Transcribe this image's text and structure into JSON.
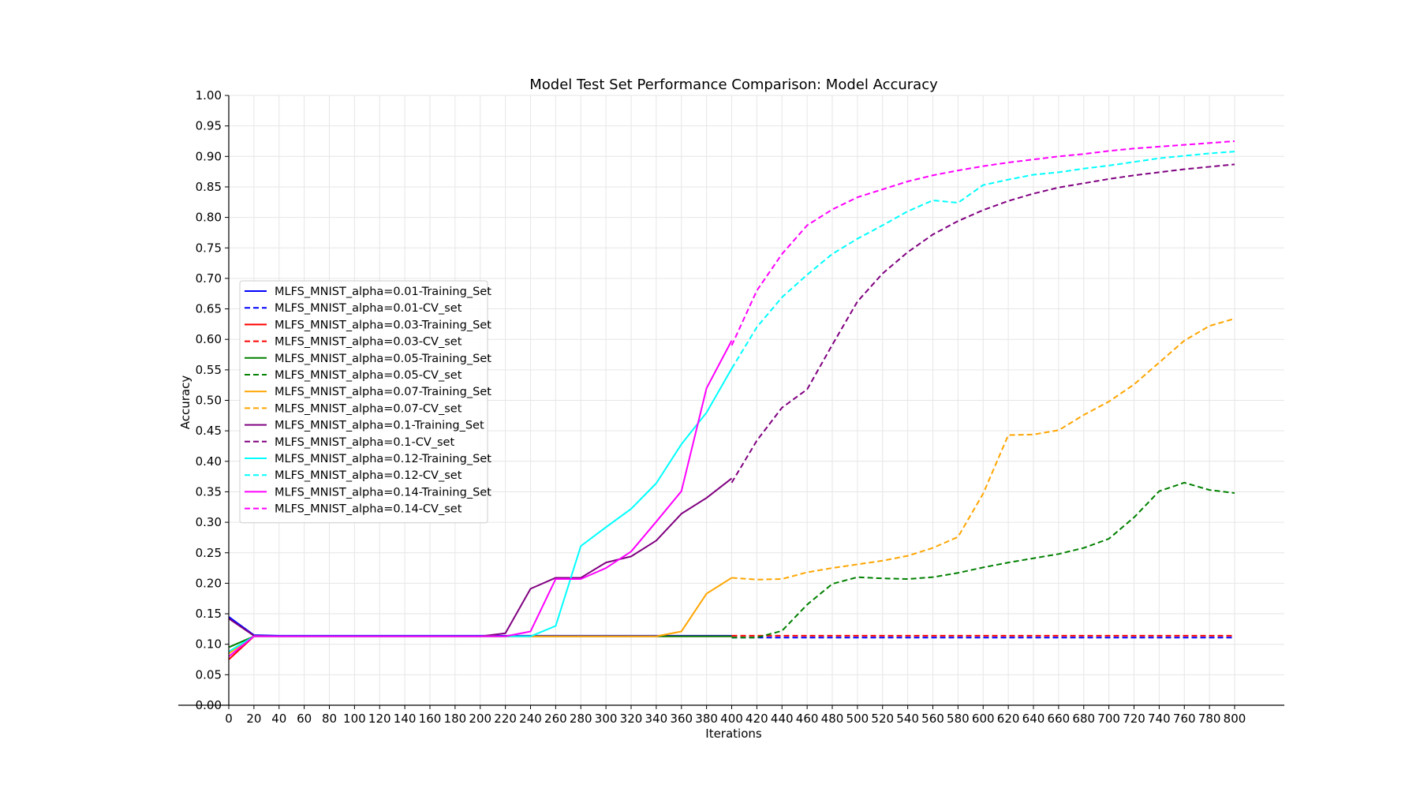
{
  "chart_data": {
    "type": "line",
    "title": "Model Test Set Performance Comparison: Model Accuracy",
    "xlabel": "Iterations",
    "ylabel": "Accuracy",
    "xlim": [
      0,
      800
    ],
    "ylim": [
      0,
      1.0
    ],
    "x_ticks": [
      0,
      20,
      40,
      60,
      80,
      100,
      120,
      140,
      160,
      180,
      200,
      220,
      240,
      260,
      280,
      300,
      320,
      340,
      360,
      380,
      400,
      420,
      440,
      460,
      480,
      500,
      520,
      540,
      560,
      580,
      600,
      620,
      640,
      660,
      680,
      700,
      720,
      740,
      760,
      780,
      800
    ],
    "y_ticks": [
      0.0,
      0.05,
      0.1,
      0.15,
      0.2,
      0.25,
      0.3,
      0.35,
      0.4,
      0.45,
      0.5,
      0.55,
      0.6,
      0.65,
      0.7,
      0.75,
      0.8,
      0.85,
      0.9,
      0.95,
      1.0
    ],
    "y_tick_labels": [
      "0.00",
      "0.05",
      "0.10",
      "0.15",
      "0.20",
      "0.25",
      "0.30",
      "0.35",
      "0.40",
      "0.45",
      "0.50",
      "0.55",
      "0.60",
      "0.65",
      "0.70",
      "0.75",
      "0.80",
      "0.85",
      "0.90",
      "0.95",
      "1.00"
    ],
    "grid": true,
    "legend_position": "center-left",
    "train_x": [
      0,
      20,
      40,
      60,
      80,
      100,
      120,
      140,
      160,
      180,
      200,
      220,
      240,
      260,
      280,
      300,
      320,
      340,
      360,
      380,
      400
    ],
    "cv_x": [
      400,
      420,
      440,
      460,
      480,
      500,
      520,
      540,
      560,
      580,
      600,
      620,
      640,
      660,
      680,
      700,
      720,
      740,
      760,
      780,
      800
    ],
    "series": [
      {
        "name": "MLFS_MNIST_alpha=0.01-Training_Set",
        "color": "#0000ff",
        "dashed": false,
        "kind": "train",
        "values": [
          0.145,
          0.115,
          0.114,
          0.114,
          0.114,
          0.114,
          0.114,
          0.114,
          0.114,
          0.114,
          0.114,
          0.114,
          0.114,
          0.114,
          0.114,
          0.114,
          0.114,
          0.114,
          0.114,
          0.114,
          0.114
        ]
      },
      {
        "name": "MLFS_MNIST_alpha=0.01-CV_set",
        "color": "#0000ff",
        "dashed": true,
        "kind": "cv",
        "values": [
          0.111,
          0.111,
          0.111,
          0.111,
          0.111,
          0.111,
          0.111,
          0.111,
          0.111,
          0.111,
          0.111,
          0.111,
          0.111,
          0.111,
          0.111,
          0.111,
          0.111,
          0.111,
          0.111,
          0.111,
          0.111
        ]
      },
      {
        "name": "MLFS_MNIST_alpha=0.03-Training_Set",
        "color": "#ff0000",
        "dashed": false,
        "kind": "train",
        "values": [
          0.075,
          0.113,
          0.113,
          0.113,
          0.113,
          0.113,
          0.113,
          0.113,
          0.113,
          0.113,
          0.113,
          0.113,
          0.113,
          0.113,
          0.113,
          0.113,
          0.113,
          0.113,
          0.113,
          0.113,
          0.113
        ]
      },
      {
        "name": "MLFS_MNIST_alpha=0.03-CV_set",
        "color": "#ff0000",
        "dashed": true,
        "kind": "cv",
        "values": [
          0.114,
          0.114,
          0.114,
          0.114,
          0.114,
          0.114,
          0.114,
          0.114,
          0.114,
          0.114,
          0.114,
          0.114,
          0.114,
          0.114,
          0.114,
          0.114,
          0.114,
          0.114,
          0.114,
          0.114,
          0.114
        ]
      },
      {
        "name": "MLFS_MNIST_alpha=0.05-Training_Set",
        "color": "#008000",
        "dashed": false,
        "kind": "train",
        "values": [
          0.095,
          0.113,
          0.113,
          0.113,
          0.113,
          0.113,
          0.113,
          0.113,
          0.113,
          0.113,
          0.113,
          0.113,
          0.113,
          0.113,
          0.113,
          0.113,
          0.113,
          0.113,
          0.113,
          0.113,
          0.113
        ]
      },
      {
        "name": "MLFS_MNIST_alpha=0.05-CV_set",
        "color": "#008000",
        "dashed": true,
        "kind": "cv",
        "values": [
          0.111,
          0.111,
          0.122,
          0.165,
          0.199,
          0.21,
          0.208,
          0.207,
          0.21,
          0.217,
          0.226,
          0.234,
          0.241,
          0.248,
          0.258,
          0.273,
          0.308,
          0.351,
          0.365,
          0.353,
          0.348
        ]
      },
      {
        "name": "MLFS_MNIST_alpha=0.07-Training_Set",
        "color": "#ffa500",
        "dashed": false,
        "kind": "train",
        "values": [
          0.085,
          0.113,
          0.113,
          0.113,
          0.113,
          0.113,
          0.113,
          0.113,
          0.113,
          0.113,
          0.113,
          0.113,
          0.113,
          0.113,
          0.113,
          0.113,
          0.113,
          0.113,
          0.121,
          0.183,
          0.209
        ]
      },
      {
        "name": "MLFS_MNIST_alpha=0.07-CV_set",
        "color": "#ffa500",
        "dashed": true,
        "kind": "cv",
        "values": [
          0.209,
          0.206,
          0.207,
          0.218,
          0.225,
          0.231,
          0.237,
          0.245,
          0.258,
          0.276,
          0.347,
          0.443,
          0.444,
          0.451,
          0.476,
          0.498,
          0.526,
          0.562,
          0.598,
          0.622,
          0.634
        ]
      },
      {
        "name": "MLFS_MNIST_alpha=0.1-Training_Set",
        "color": "#800080",
        "dashed": false,
        "kind": "train",
        "values": [
          0.142,
          0.114,
          0.113,
          0.113,
          0.113,
          0.113,
          0.113,
          0.113,
          0.113,
          0.113,
          0.113,
          0.118,
          0.191,
          0.209,
          0.209,
          0.234,
          0.244,
          0.27,
          0.314,
          0.34,
          0.372
        ]
      },
      {
        "name": "MLFS_MNIST_alpha=0.1-CV_set",
        "color": "#800080",
        "dashed": true,
        "kind": "cv",
        "values": [
          0.365,
          0.434,
          0.488,
          0.518,
          0.591,
          0.662,
          0.708,
          0.743,
          0.772,
          0.794,
          0.812,
          0.827,
          0.839,
          0.849,
          0.856,
          0.863,
          0.869,
          0.874,
          0.879,
          0.883,
          0.887
        ]
      },
      {
        "name": "MLFS_MNIST_alpha=0.12-Training_Set",
        "color": "#00ffff",
        "dashed": false,
        "kind": "train",
        "values": [
          0.088,
          0.113,
          0.113,
          0.113,
          0.113,
          0.113,
          0.113,
          0.113,
          0.113,
          0.113,
          0.113,
          0.113,
          0.113,
          0.13,
          0.261,
          0.292,
          0.322,
          0.364,
          0.428,
          0.48,
          0.552
        ]
      },
      {
        "name": "MLFS_MNIST_alpha=0.12-CV_set",
        "color": "#00ffff",
        "dashed": true,
        "kind": "cv",
        "values": [
          0.552,
          0.62,
          0.669,
          0.706,
          0.74,
          0.765,
          0.787,
          0.81,
          0.828,
          0.824,
          0.853,
          0.862,
          0.87,
          0.874,
          0.88,
          0.885,
          0.891,
          0.897,
          0.901,
          0.905,
          0.908
        ]
      },
      {
        "name": "MLFS_MNIST_alpha=0.14-Training_Set",
        "color": "#ff00ff",
        "dashed": false,
        "kind": "train",
        "values": [
          0.08,
          0.113,
          0.113,
          0.113,
          0.113,
          0.113,
          0.113,
          0.113,
          0.113,
          0.113,
          0.113,
          0.113,
          0.121,
          0.207,
          0.207,
          0.225,
          0.252,
          0.301,
          0.351,
          0.52,
          0.598
        ]
      },
      {
        "name": "MLFS_MNIST_alpha=0.14-CV_set",
        "color": "#ff00ff",
        "dashed": true,
        "kind": "cv",
        "values": [
          0.59,
          0.68,
          0.74,
          0.787,
          0.813,
          0.833,
          0.846,
          0.859,
          0.869,
          0.877,
          0.884,
          0.89,
          0.895,
          0.9,
          0.904,
          0.909,
          0.913,
          0.916,
          0.919,
          0.922,
          0.925
        ]
      }
    ]
  }
}
